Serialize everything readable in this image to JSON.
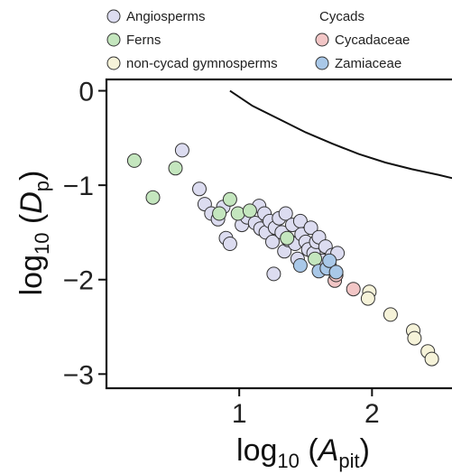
{
  "chart_data": {
    "type": "scatter",
    "title": "",
    "xlabel": {
      "prefix": "log",
      "sub": "10",
      "open": " (",
      "var": "A",
      "var_sub": "pit",
      "close": ")"
    },
    "ylabel": {
      "prefix": "log",
      "sub": "10",
      "open": " (",
      "var": "D",
      "var_sub": "p",
      "close": ")"
    },
    "xlim": [
      0.0,
      2.65
    ],
    "ylim": [
      -3.15,
      0.12
    ],
    "xticks": [
      {
        "value": 1,
        "label": "1"
      },
      {
        "value": 2,
        "label": "2"
      }
    ],
    "yticks": [
      {
        "value": 0,
        "label": "0"
      },
      {
        "value": -1,
        "label": "−1"
      },
      {
        "value": -2,
        "label": "−2"
      },
      {
        "value": -3,
        "label": "−3"
      }
    ],
    "grid": false,
    "legend": {
      "placement": "top",
      "entries": [
        {
          "label": "Angiosperms",
          "series": "angiosperms"
        },
        {
          "label": "Ferns",
          "series": "ferns"
        },
        {
          "label": "non-cycad gymnosperms",
          "series": "gymnosperms"
        }
      ],
      "group_title": "Cycads",
      "group_entries": [
        {
          "label": "Cycadaceae",
          "series": "cycadaceae"
        },
        {
          "label": "Zamiaceae",
          "series": "zamiaceae"
        }
      ]
    },
    "curve": {
      "points": [
        [
          0.93,
          0.0
        ],
        [
          1.1,
          -0.16
        ],
        [
          1.3,
          -0.3
        ],
        [
          1.5,
          -0.44
        ],
        [
          1.7,
          -0.56
        ],
        [
          1.9,
          -0.67
        ],
        [
          2.1,
          -0.76
        ],
        [
          2.3,
          -0.83
        ],
        [
          2.5,
          -0.89
        ],
        [
          2.65,
          -0.94
        ]
      ]
    },
    "series": [
      {
        "id": "angiosperms",
        "color": "#dcdcf0",
        "points": [
          [
            0.57,
            -0.63
          ],
          [
            0.7,
            -1.04
          ],
          [
            0.74,
            -1.2
          ],
          [
            0.79,
            -1.3
          ],
          [
            0.84,
            -1.36
          ],
          [
            0.88,
            -1.23
          ],
          [
            0.9,
            -1.56
          ],
          [
            0.93,
            -1.62
          ],
          [
            1.02,
            -1.42
          ],
          [
            1.06,
            -1.34
          ],
          [
            1.12,
            -1.4
          ],
          [
            1.15,
            -1.22
          ],
          [
            1.16,
            -1.46
          ],
          [
            1.19,
            -1.3
          ],
          [
            1.2,
            -1.5
          ],
          [
            1.23,
            -1.38
          ],
          [
            1.25,
            -1.6
          ],
          [
            1.26,
            -1.94
          ],
          [
            1.27,
            -1.45
          ],
          [
            1.3,
            -1.35
          ],
          [
            1.32,
            -1.5
          ],
          [
            1.34,
            -1.7
          ],
          [
            1.35,
            -1.3
          ],
          [
            1.37,
            -1.58
          ],
          [
            1.4,
            -1.42
          ],
          [
            1.42,
            -1.62
          ],
          [
            1.44,
            -1.78
          ],
          [
            1.46,
            -1.38
          ],
          [
            1.47,
            -1.52
          ],
          [
            1.5,
            -1.6
          ],
          [
            1.52,
            -1.68
          ],
          [
            1.54,
            -1.45
          ],
          [
            1.56,
            -1.72
          ],
          [
            1.58,
            -1.6
          ],
          [
            1.6,
            -1.55
          ],
          [
            1.63,
            -1.8
          ],
          [
            1.65,
            -1.65
          ],
          [
            1.68,
            -1.85
          ],
          [
            1.7,
            -1.74
          ],
          [
            1.73,
            -1.95
          ],
          [
            1.74,
            -1.72
          ]
        ]
      },
      {
        "id": "ferns",
        "color": "#c4e6be",
        "points": [
          [
            0.21,
            -0.74
          ],
          [
            0.35,
            -1.13
          ],
          [
            0.52,
            -0.82
          ],
          [
            0.85,
            -1.3
          ],
          [
            0.93,
            -1.15
          ],
          [
            0.99,
            -1.3
          ],
          [
            1.08,
            -1.27
          ],
          [
            1.36,
            -1.56
          ],
          [
            1.57,
            -1.78
          ]
        ]
      },
      {
        "id": "gymnosperms",
        "color": "#f6f3d9",
        "points": [
          [
            1.98,
            -2.13
          ],
          [
            1.97,
            -2.2
          ],
          [
            2.14,
            -2.37
          ],
          [
            2.31,
            -2.54
          ],
          [
            2.32,
            -2.62
          ],
          [
            2.42,
            -2.76
          ],
          [
            2.45,
            -2.84
          ]
        ]
      },
      {
        "id": "cycadaceae",
        "color": "#f2c6c6",
        "points": [
          [
            1.72,
            -2.01
          ],
          [
            1.73,
            -1.95
          ],
          [
            1.86,
            -2.1
          ]
        ]
      },
      {
        "id": "zamiaceae",
        "color": "#a9c8e8",
        "points": [
          [
            1.46,
            -1.85
          ],
          [
            1.6,
            -1.91
          ],
          [
            1.66,
            -1.88
          ],
          [
            1.68,
            -1.8
          ],
          [
            1.73,
            -1.92
          ]
        ]
      }
    ]
  }
}
